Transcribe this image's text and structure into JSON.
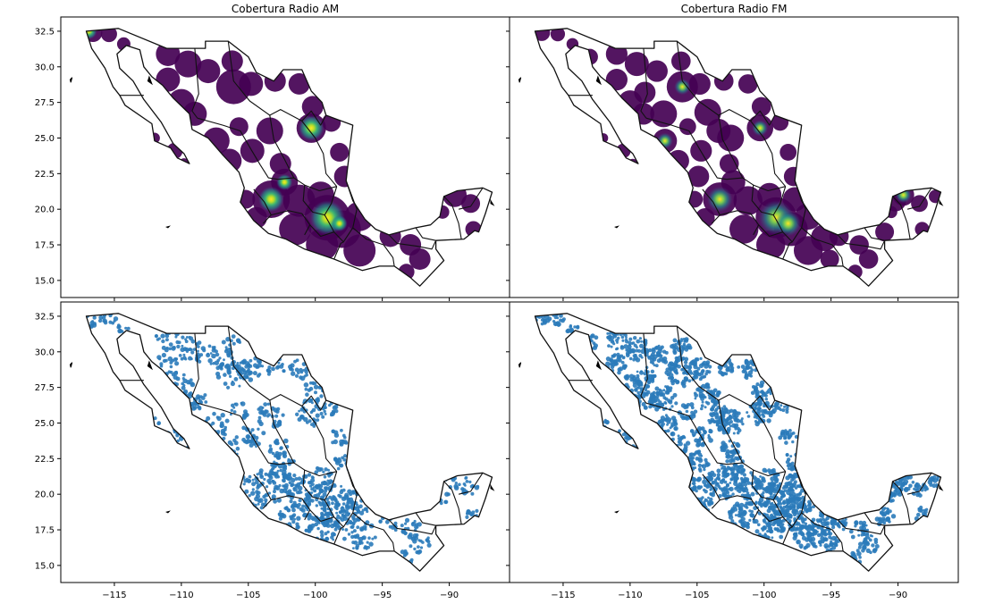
{
  "figure": {
    "panels": [
      {
        "id": "am_intensity",
        "title": "Cobertura Radio AM",
        "style": "viridis"
      },
      {
        "id": "fm_intensity",
        "title": "Cobertura Radio FM",
        "style": "viridis"
      },
      {
        "id": "am_points",
        "title": "",
        "style": "points"
      },
      {
        "id": "fm_points",
        "title": "",
        "style": "points"
      }
    ],
    "xticks": [
      "−115",
      "−110",
      "−105",
      "−100",
      "−95",
      "−90"
    ],
    "yticks": [
      "32.5",
      "30.0",
      "27.5",
      "25.0",
      "22.5",
      "20.0",
      "17.5",
      "15.0"
    ],
    "colors": {
      "viridis_low": "#440154",
      "viridis_mid": "#21918c",
      "viridis_high": "#fde725",
      "points": "#2b7bba",
      "borders": "#000000"
    }
  },
  "chart_data": [
    {
      "type": "heatmap",
      "title": "Cobertura Radio AM",
      "xlim": [
        -119,
        -85.5
      ],
      "ylim": [
        13.8,
        33.5
      ],
      "hotspots_lonlat": [
        [
          -99.1,
          19.4
        ],
        [
          -103.3,
          20.7
        ],
        [
          -100.3,
          25.7
        ],
        [
          -98.2,
          19.0
        ],
        [
          -102.3,
          21.9
        ],
        [
          -116.9,
          32.5
        ]
      ]
    },
    {
      "type": "heatmap",
      "title": "Cobertura Radio FM",
      "xlim": [
        -119,
        -85.5
      ],
      "ylim": [
        13.8,
        33.5
      ],
      "hotspots_lonlat": [
        [
          -99.1,
          19.4
        ],
        [
          -98.2,
          19.0
        ],
        [
          -103.3,
          20.7
        ],
        [
          -97.0,
          22.3
        ],
        [
          -100.3,
          25.7
        ],
        [
          -106.1,
          28.6
        ],
        [
          -107.4,
          24.8
        ],
        [
          -89.6,
          21.0
        ]
      ]
    },
    {
      "type": "scatter",
      "title": "",
      "xlim": [
        -119,
        -85.5
      ],
      "ylim": [
        13.8,
        33.5
      ]
    },
    {
      "type": "scatter",
      "title": "",
      "xlim": [
        -119,
        -85.5
      ],
      "ylim": [
        13.8,
        33.5
      ]
    }
  ]
}
